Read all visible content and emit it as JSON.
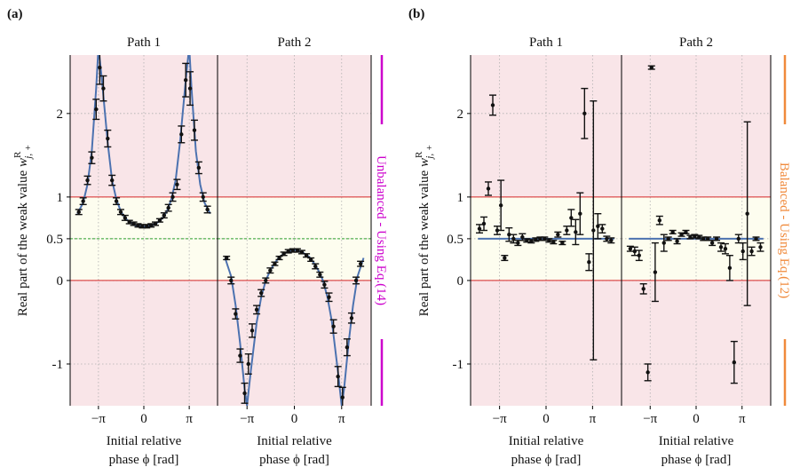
{
  "chart_data": [
    {
      "type": "errorbar",
      "panel_label": "(a)",
      "title": "Path 1",
      "ylabel": "Real part of the weak value ",
      "ylabel_symbol": "w",
      "ylabel_sup": "R",
      "ylabel_sub": "j, +",
      "xlabel": [
        "Initial relative",
        "phase ϕ [rad]"
      ],
      "xlim": [
        -5.1,
        5.1
      ],
      "ylim": [
        -1.5,
        2.7
      ],
      "xticks": [
        {
          "value": -3.14159,
          "label": "−π"
        },
        0,
        {
          "value": 3.14159,
          "label": "π"
        }
      ],
      "yticks": [
        -1,
        0,
        0.5,
        1,
        2
      ],
      "grid": true,
      "hlines": [
        {
          "value": 1,
          "color": "#d62728",
          "style": "solid"
        },
        {
          "value": 0.5,
          "color": "#2ca02c",
          "style": "dashed"
        },
        {
          "value": 0,
          "color": "#d62728",
          "style": "solid"
        }
      ],
      "points": {
        "color": "#111111",
        "x": [
          -4.5,
          -4.2,
          -3.9,
          -3.6,
          -3.3,
          -3.05,
          -2.8,
          -2.5,
          -2.2,
          -1.9,
          -1.6,
          -1.3,
          -1.0,
          -0.7,
          -0.4,
          -0.1,
          0.2,
          0.5,
          0.8,
          1.1,
          1.4,
          1.7,
          2.0,
          2.3,
          2.6,
          2.9,
          3.2,
          3.5,
          3.8,
          4.1,
          4.4
        ],
        "y": [
          0.82,
          0.95,
          1.2,
          1.47,
          2.05,
          2.55,
          2.3,
          1.7,
          1.2,
          0.95,
          0.82,
          0.75,
          0.7,
          0.68,
          0.66,
          0.65,
          0.65,
          0.66,
          0.68,
          0.72,
          0.78,
          0.87,
          1.0,
          1.15,
          1.75,
          2.4,
          2.3,
          1.8,
          1.35,
          1.0,
          0.85
        ],
        "yerr": [
          0.03,
          0.04,
          0.05,
          0.07,
          0.12,
          0.2,
          0.15,
          0.1,
          0.06,
          0.04,
          0.03,
          0.03,
          0.02,
          0.02,
          0.02,
          0.02,
          0.02,
          0.02,
          0.02,
          0.02,
          0.03,
          0.04,
          0.05,
          0.06,
          0.1,
          0.2,
          0.2,
          0.12,
          0.07,
          0.05,
          0.04
        ]
      },
      "fit": {
        "color": "#4c72b0",
        "x": [
          -4.6,
          -4.2,
          -3.9,
          -3.6,
          -3.3,
          -3.14,
          -2.9,
          -2.5,
          -2.2,
          -1.9,
          -1.6,
          -1.3,
          -1.0,
          -0.6,
          -0.2,
          0,
          0.2,
          0.6,
          1.0,
          1.3,
          1.6,
          1.9,
          2.2,
          2.5,
          2.9,
          3.14,
          3.3,
          3.6,
          3.9,
          4.2,
          4.6
        ],
        "y": [
          0.8,
          0.93,
          1.15,
          1.55,
          2.3,
          2.8,
          2.4,
          1.65,
          1.2,
          0.97,
          0.83,
          0.75,
          0.7,
          0.66,
          0.65,
          0.645,
          0.65,
          0.66,
          0.7,
          0.75,
          0.83,
          0.97,
          1.2,
          1.65,
          2.4,
          2.8,
          2.3,
          1.55,
          1.15,
          0.93,
          0.8
        ]
      }
    },
    {
      "type": "errorbar",
      "title": "Path 2",
      "xlabel": [
        "Initial relative",
        "phase ϕ [rad]"
      ],
      "side_label": "Unbalanced - Using Eq.(14)",
      "side_color": "#cc00cc",
      "xlim": [
        -5.1,
        5.1
      ],
      "ylim": [
        -1.5,
        2.7
      ],
      "xticks": [
        {
          "value": -3.14159,
          "label": "−π"
        },
        0,
        {
          "value": 3.14159,
          "label": "π"
        }
      ],
      "yticks": [
        -1,
        0,
        0.5,
        1,
        2
      ],
      "grid": true,
      "hlines": [
        {
          "value": 1,
          "color": "#d62728",
          "style": "solid"
        },
        {
          "value": 0.5,
          "color": "#2ca02c",
          "style": "dashed"
        },
        {
          "value": 0,
          "color": "#d62728",
          "style": "solid"
        }
      ],
      "points": {
        "color": "#111111",
        "x": [
          -4.5,
          -4.2,
          -3.9,
          -3.6,
          -3.3,
          -3.05,
          -2.8,
          -2.5,
          -2.2,
          -1.9,
          -1.6,
          -1.3,
          -1.0,
          -0.7,
          -0.4,
          -0.1,
          0.2,
          0.5,
          0.8,
          1.1,
          1.4,
          1.7,
          2.0,
          2.3,
          2.6,
          2.9,
          3.2,
          3.5,
          3.8,
          4.1,
          4.4
        ],
        "y": [
          0.27,
          0.0,
          -0.4,
          -0.9,
          -1.35,
          -1.0,
          -0.6,
          -0.35,
          -0.15,
          0.0,
          0.12,
          0.2,
          0.27,
          0.32,
          0.35,
          0.36,
          0.36,
          0.34,
          0.3,
          0.25,
          0.17,
          0.07,
          -0.05,
          -0.2,
          -0.55,
          -1.15,
          -1.4,
          -0.8,
          -0.45,
          0.0,
          0.2
        ],
        "yerr": [
          0.02,
          0.04,
          0.06,
          0.08,
          0.12,
          0.12,
          0.08,
          0.05,
          0.04,
          0.03,
          0.03,
          0.02,
          0.02,
          0.02,
          0.02,
          0.02,
          0.02,
          0.02,
          0.02,
          0.02,
          0.03,
          0.03,
          0.04,
          0.05,
          0.08,
          0.12,
          0.12,
          0.1,
          0.06,
          0.04,
          0.03
        ]
      },
      "fit": {
        "color": "#4c72b0",
        "x": [
          -4.6,
          -4.2,
          -3.9,
          -3.6,
          -3.3,
          -3.14,
          -2.9,
          -2.5,
          -2.2,
          -1.9,
          -1.6,
          -1.3,
          -1.0,
          -0.6,
          -0.2,
          0,
          0.2,
          0.6,
          1.0,
          1.3,
          1.6,
          1.9,
          2.2,
          2.5,
          2.9,
          3.14,
          3.3,
          3.6,
          3.9,
          4.2,
          4.6
        ],
        "y": [
          0.27,
          0.05,
          -0.3,
          -0.75,
          -1.3,
          -1.5,
          -1.1,
          -0.5,
          -0.2,
          0.0,
          0.12,
          0.21,
          0.28,
          0.33,
          0.36,
          0.365,
          0.36,
          0.33,
          0.28,
          0.21,
          0.12,
          0.0,
          -0.2,
          -0.5,
          -1.1,
          -1.5,
          -1.3,
          -0.75,
          -0.3,
          0.05,
          0.27
        ]
      }
    },
    {
      "type": "errorbar",
      "panel_label": "(b)",
      "title": "Path 1",
      "ylabel": "Real part of the weak value ",
      "ylabel_symbol": "w",
      "ylabel_sup": "R",
      "ylabel_sub": "j, +",
      "xlabel": [
        "Initial relative",
        "phase ϕ [rad]"
      ],
      "xlim": [
        -5.1,
        5.1
      ],
      "ylim": [
        -1.5,
        2.7
      ],
      "xticks": [
        {
          "value": -3.14159,
          "label": "−π"
        },
        0,
        {
          "value": 3.14159,
          "label": "π"
        }
      ],
      "yticks": [
        -1,
        0,
        0.5,
        1,
        2
      ],
      "grid": true,
      "hlines": [
        {
          "value": 1,
          "color": "#d62728",
          "style": "solid"
        },
        {
          "value": 0,
          "color": "#d62728",
          "style": "solid"
        }
      ],
      "points": {
        "color": "#111111",
        "x": [
          -4.5,
          -4.2,
          -3.9,
          -3.6,
          -3.3,
          -3.05,
          -2.8,
          -2.5,
          -2.2,
          -1.9,
          -1.6,
          -1.3,
          -1.0,
          -0.7,
          -0.4,
          -0.1,
          0.2,
          0.5,
          0.8,
          1.1,
          1.4,
          1.7,
          2.0,
          2.3,
          2.6,
          2.9,
          3.2,
          3.5,
          3.8,
          4.1,
          4.4
        ],
        "y": [
          0.62,
          0.68,
          1.1,
          2.1,
          0.6,
          0.9,
          0.27,
          0.55,
          0.5,
          0.45,
          0.52,
          0.48,
          0.47,
          0.49,
          0.5,
          0.5,
          0.48,
          0.46,
          0.55,
          0.45,
          0.6,
          0.75,
          0.58,
          0.8,
          2.0,
          0.22,
          0.6,
          0.65,
          0.62,
          0.5,
          0.48
        ],
        "yerr": [
          0.05,
          0.08,
          0.08,
          0.12,
          0.05,
          0.3,
          0.03,
          0.08,
          0.05,
          0.03,
          0.04,
          0.02,
          0.02,
          0.02,
          0.02,
          0.02,
          0.02,
          0.02,
          0.03,
          0.02,
          0.05,
          0.1,
          0.15,
          0.25,
          0.3,
          0.1,
          1.55,
          0.15,
          0.05,
          0.03,
          0.03
        ]
      },
      "fit": {
        "color": "#4c72b0",
        "x": [
          -4.6,
          4.6
        ],
        "y": [
          0.5,
          0.5
        ]
      }
    },
    {
      "type": "errorbar",
      "title": "Path 2",
      "xlabel": [
        "Initial relative",
        "phase ϕ [rad]"
      ],
      "side_label": "Balanced - Using Eq.(12)",
      "side_color": "#f08a3c",
      "xlim": [
        -5.1,
        5.1
      ],
      "ylim": [
        -1.5,
        2.7
      ],
      "xticks": [
        {
          "value": -3.14159,
          "label": "−π"
        },
        0,
        {
          "value": 3.14159,
          "label": "π"
        }
      ],
      "yticks": [
        -1,
        0,
        0.5,
        1,
        2
      ],
      "grid": true,
      "hlines": [
        {
          "value": 1,
          "color": "#d62728",
          "style": "solid"
        },
        {
          "value": 0,
          "color": "#d62728",
          "style": "solid"
        }
      ],
      "points": {
        "color": "#111111",
        "x": [
          -4.5,
          -4.2,
          -3.9,
          -3.6,
          -3.3,
          -3.05,
          -2.8,
          -2.5,
          -2.2,
          -1.9,
          -1.6,
          -1.3,
          -1.0,
          -0.7,
          -0.4,
          -0.1,
          0.2,
          0.5,
          0.8,
          1.1,
          1.4,
          1.7,
          2.0,
          2.3,
          2.6,
          2.9,
          3.2,
          3.5,
          3.8,
          4.1,
          4.4
        ],
        "y": [
          0.38,
          0.35,
          0.3,
          -0.1,
          -1.1,
          2.55,
          0.1,
          0.72,
          0.45,
          0.5,
          0.58,
          0.47,
          0.55,
          0.58,
          0.52,
          0.53,
          0.52,
          0.5,
          0.5,
          0.45,
          0.5,
          0.4,
          0.38,
          0.15,
          -0.98,
          0.5,
          0.35,
          0.8,
          0.35,
          0.5,
          0.4
        ],
        "yerr": [
          0.03,
          0.05,
          0.06,
          0.06,
          0.1,
          0.02,
          0.35,
          0.05,
          0.1,
          0.02,
          0.02,
          0.03,
          0.02,
          0.02,
          0.02,
          0.02,
          0.02,
          0.02,
          0.02,
          0.03,
          0.02,
          0.05,
          0.06,
          0.15,
          0.25,
          0.05,
          0.1,
          1.1,
          0.05,
          0.02,
          0.05
        ]
      },
      "fit": {
        "color": "#4c72b0",
        "x": [
          -4.6,
          4.6
        ],
        "y": [
          0.5,
          0.5
        ]
      }
    }
  ]
}
